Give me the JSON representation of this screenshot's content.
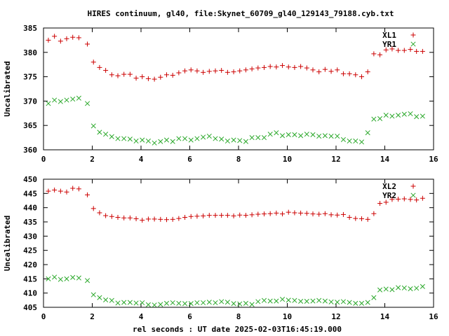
{
  "title": "HIRES continuum, gl40, file:Skynet_60709_gl40_129143_79188.cyb.txt",
  "xlabel": "rel seconds : UT date 2025-02-03T16:45:19.000",
  "colors": {
    "red_series": "#cc0000",
    "green_series": "#2aa82a",
    "axis": "#000000"
  },
  "chart_data": [
    {
      "type": "scatter",
      "ylabel": "Uncalibrated",
      "xlim": [
        0,
        16
      ],
      "ylim": [
        360,
        385
      ],
      "xticks": [
        0,
        2,
        4,
        6,
        8,
        10,
        12,
        14,
        16
      ],
      "yticks": [
        360,
        365,
        370,
        375,
        380,
        385
      ],
      "grid": false,
      "legend_position": "top-right",
      "x": [
        0.2,
        0.45,
        0.7,
        0.95,
        1.2,
        1.45,
        1.8,
        2.05,
        2.3,
        2.55,
        2.8,
        3.05,
        3.3,
        3.55,
        3.8,
        4.05,
        4.3,
        4.55,
        4.8,
        5.05,
        5.3,
        5.55,
        5.8,
        6.05,
        6.3,
        6.55,
        6.8,
        7.05,
        7.3,
        7.55,
        7.8,
        8.05,
        8.3,
        8.55,
        8.8,
        9.05,
        9.3,
        9.55,
        9.8,
        10.05,
        10.3,
        10.55,
        10.8,
        11.05,
        11.3,
        11.55,
        11.8,
        12.05,
        12.3,
        12.55,
        12.8,
        13.05,
        13.3,
        13.55,
        13.8,
        14.05,
        14.3,
        14.55,
        14.8,
        15.05,
        15.3,
        15.55
      ],
      "series": [
        {
          "name": "XL1",
          "marker": "plus",
          "color": "#cc0000",
          "values": [
            382.5,
            383.3,
            382.3,
            382.8,
            383.1,
            383.0,
            381.7,
            378.0,
            376.9,
            376.3,
            375.4,
            375.2,
            375.5,
            375.5,
            374.7,
            375.0,
            374.6,
            374.5,
            374.9,
            375.4,
            375.3,
            375.8,
            376.2,
            376.4,
            376.2,
            375.9,
            376.1,
            376.2,
            376.3,
            375.9,
            376.0,
            376.2,
            376.4,
            376.6,
            376.8,
            376.9,
            377.1,
            377.0,
            377.3,
            377.0,
            376.9,
            377.1,
            376.8,
            376.4,
            376.0,
            376.5,
            376.1,
            376.4,
            375.6,
            375.6,
            375.4,
            375.0,
            376.0,
            379.7,
            379.5,
            380.5,
            380.7,
            380.4,
            380.4,
            380.6,
            380.2,
            380.2
          ]
        },
        {
          "name": "YR1",
          "marker": "cross",
          "color": "#2aa82a",
          "values": [
            369.5,
            370.2,
            369.9,
            370.2,
            370.4,
            370.6,
            369.5,
            364.9,
            363.6,
            363.2,
            362.7,
            362.3,
            362.3,
            362.2,
            361.8,
            362.0,
            361.8,
            361.4,
            361.7,
            362.0,
            361.7,
            362.3,
            362.3,
            362.0,
            362.3,
            362.6,
            362.8,
            362.3,
            362.2,
            361.8,
            362.0,
            361.9,
            361.7,
            362.5,
            362.5,
            362.5,
            363.2,
            363.5,
            362.9,
            363.1,
            363.1,
            362.9,
            363.2,
            363.1,
            362.8,
            362.9,
            362.8,
            362.8,
            362.1,
            361.8,
            361.8,
            361.6,
            363.5,
            366.3,
            366.4,
            367.1,
            366.9,
            367.1,
            367.3,
            367.4,
            366.8,
            366.9
          ]
        }
      ]
    },
    {
      "type": "scatter",
      "ylabel": "Uncalibrated",
      "xlim": [
        0,
        16
      ],
      "ylim": [
        405,
        450
      ],
      "xticks": [
        0,
        2,
        4,
        6,
        8,
        10,
        12,
        14,
        16
      ],
      "yticks": [
        405,
        410,
        415,
        420,
        425,
        430,
        435,
        440,
        445,
        450
      ],
      "grid": false,
      "legend_position": "top-right",
      "x": [
        0.2,
        0.45,
        0.7,
        0.95,
        1.2,
        1.45,
        1.8,
        2.05,
        2.3,
        2.55,
        2.8,
        3.05,
        3.3,
        3.55,
        3.8,
        4.05,
        4.3,
        4.55,
        4.8,
        5.05,
        5.3,
        5.55,
        5.8,
        6.05,
        6.3,
        6.55,
        6.8,
        7.05,
        7.3,
        7.55,
        7.8,
        8.05,
        8.3,
        8.55,
        8.8,
        9.05,
        9.3,
        9.55,
        9.8,
        10.05,
        10.3,
        10.55,
        10.8,
        11.05,
        11.3,
        11.55,
        11.8,
        12.05,
        12.3,
        12.55,
        12.8,
        13.05,
        13.3,
        13.55,
        13.8,
        14.05,
        14.3,
        14.55,
        14.8,
        15.05,
        15.3,
        15.55
      ],
      "series": [
        {
          "name": "XL2",
          "marker": "plus",
          "color": "#cc0000",
          "values": [
            445.8,
            446.2,
            445.8,
            445.5,
            446.8,
            446.6,
            444.5,
            439.7,
            438.2,
            437.2,
            436.9,
            436.6,
            436.4,
            436.4,
            436.1,
            435.6,
            436.0,
            436.0,
            435.9,
            435.8,
            435.9,
            436.2,
            436.6,
            436.9,
            437.0,
            437.1,
            437.3,
            437.3,
            437.3,
            437.3,
            437.1,
            437.4,
            437.3,
            437.5,
            437.7,
            437.8,
            437.9,
            438.1,
            437.8,
            438.4,
            438.2,
            438.1,
            438.0,
            437.8,
            437.7,
            437.9,
            437.5,
            437.4,
            437.6,
            436.6,
            436.2,
            436.1,
            435.9,
            437.9,
            441.5,
            441.9,
            442.9,
            443.0,
            443.1,
            442.9,
            442.7,
            443.3
          ]
        },
        {
          "name": "YR2",
          "marker": "cross",
          "color": "#2aa82a",
          "values": [
            415.0,
            415.6,
            414.8,
            415.0,
            415.5,
            415.3,
            414.4,
            409.4,
            408.4,
            407.6,
            407.4,
            406.5,
            406.7,
            406.7,
            406.5,
            406.6,
            405.9,
            405.8,
            406.0,
            406.4,
            406.6,
            406.4,
            406.3,
            406.3,
            406.6,
            406.6,
            406.8,
            406.6,
            407.0,
            406.8,
            406.3,
            406.2,
            406.4,
            406.0,
            407.0,
            407.4,
            407.2,
            407.2,
            407.8,
            407.5,
            407.4,
            407.1,
            407.1,
            407.2,
            407.4,
            407.2,
            406.9,
            406.8,
            407.0,
            406.7,
            406.4,
            406.4,
            406.7,
            408.4,
            411.1,
            411.4,
            411.2,
            411.9,
            411.8,
            411.5,
            411.7,
            412.3
          ]
        }
      ]
    }
  ]
}
